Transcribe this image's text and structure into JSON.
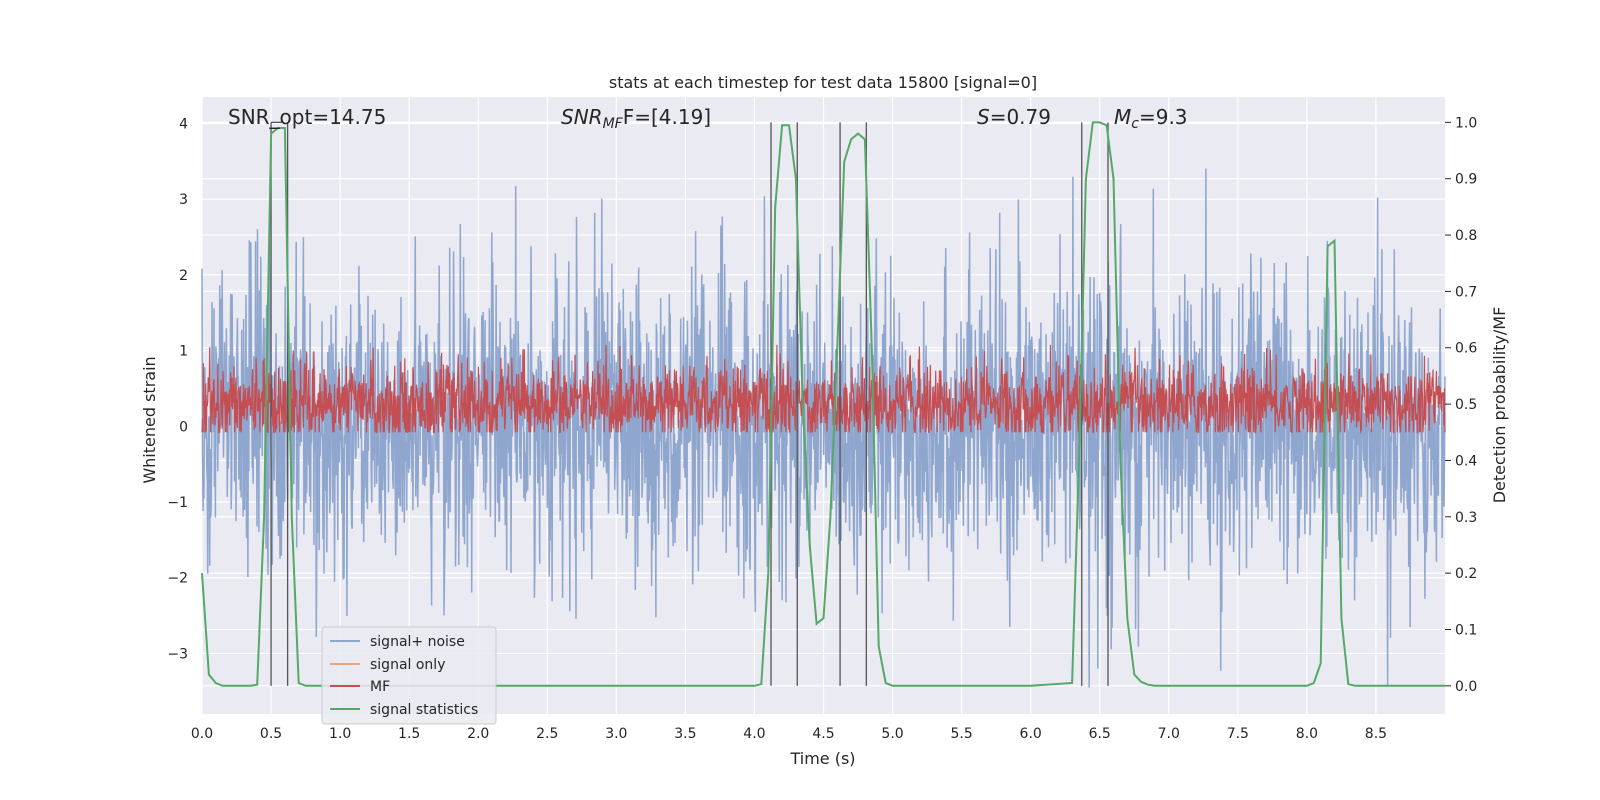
{
  "chart_data": {
    "type": "line",
    "title": "stats at each timestep for test data 15800 [signal=0]",
    "xlabel": "Time (s)",
    "ylabel": "Whitened strain",
    "ylabel_right": "Detection probability/MF",
    "xlim": [
      0.0,
      9.0
    ],
    "ylim": [
      -3.8,
      4.35
    ],
    "ylim_right": [
      -0.05,
      1.045
    ],
    "xticks": [
      "0.0",
      "0.5",
      "1.0",
      "1.5",
      "2.0",
      "2.5",
      "3.0",
      "3.5",
      "4.0",
      "4.5",
      "5.0",
      "5.5",
      "6.0",
      "6.5",
      "7.0",
      "7.5",
      "8.0",
      "8.5"
    ],
    "yticks": [
      "4",
      "3",
      "2",
      "1",
      "0",
      "−1",
      "−2",
      "−3"
    ],
    "yticks_right": [
      "1.0",
      "0.9",
      "0.8",
      "0.7",
      "0.6",
      "0.5",
      "0.4",
      "0.3",
      "0.2",
      "0.1",
      "0.0"
    ],
    "grid": true,
    "legend_position": "lower-left",
    "annotations": {
      "snr_opt": "SNR_opt=14.75",
      "snr_mf_main": "SNR",
      "snr_mf_sub": "MF",
      "snr_mf_value": "F=[4.19]",
      "s_main": "S",
      "s_value": "=0.79",
      "mc_main": "M",
      "mc_sub": "c",
      "mc_value": "=9.3"
    },
    "series": [
      {
        "name": "signal+ noise",
        "color": "#8fa6cf",
        "description": "noise-dominated whitened strain, roughly symmetric about 0, amplitude ~±2 with peaks to ~3.8 and troughs to ~-3.4"
      },
      {
        "name": "signal only",
        "color": "#eea184"
      },
      {
        "name": "MF",
        "color": "#c44e52",
        "description": "matched-filter output on right axis, fluctuating between ~0.45 and ~0.6"
      },
      {
        "name": "signal statistics",
        "color": "#55a868",
        "x": [
          0.0,
          0.05,
          0.1,
          0.15,
          0.2,
          0.25,
          0.3,
          0.35,
          0.4,
          0.45,
          0.5,
          0.55,
          0.6,
          0.65,
          0.7,
          0.75,
          0.8,
          0.85,
          0.9,
          0.95,
          1.0,
          1.5,
          2.0,
          2.5,
          3.0,
          3.5,
          4.0,
          4.05,
          4.1,
          4.15,
          4.2,
          4.25,
          4.3,
          4.35,
          4.4,
          4.45,
          4.5,
          4.55,
          4.6,
          4.65,
          4.7,
          4.75,
          4.8,
          4.85,
          4.9,
          4.95,
          5.0,
          5.05,
          5.1,
          5.5,
          6.0,
          6.3,
          6.35,
          6.4,
          6.45,
          6.5,
          6.55,
          6.6,
          6.65,
          6.7,
          6.75,
          6.8,
          6.85,
          6.9,
          6.95,
          7.0,
          7.5,
          8.0,
          8.05,
          8.1,
          8.15,
          8.2,
          8.25,
          8.3,
          8.35,
          8.4,
          8.5,
          9.0
        ],
        "y": [
          0.2,
          0.02,
          0.005,
          0.0,
          0.0,
          0.0,
          0.0,
          0.0,
          0.002,
          0.3,
          0.98,
          0.99,
          0.99,
          0.3,
          0.005,
          0.0,
          0.0,
          0.0,
          0.0,
          0.0,
          0.0,
          0.0,
          0.0,
          0.0,
          0.0,
          0.0,
          0.0,
          0.003,
          0.2,
          0.85,
          0.995,
          0.995,
          0.9,
          0.5,
          0.25,
          0.11,
          0.12,
          0.3,
          0.6,
          0.93,
          0.97,
          0.98,
          0.97,
          0.6,
          0.07,
          0.005,
          0.0,
          0.0,
          0.0,
          0.0,
          0.0,
          0.005,
          0.4,
          0.9,
          1.0,
          1.0,
          0.995,
          0.9,
          0.4,
          0.12,
          0.02,
          0.007,
          0.002,
          0.0,
          0.0,
          0.0,
          0.0,
          0.0,
          0.005,
          0.04,
          0.78,
          0.79,
          0.12,
          0.003,
          0.0,
          0.0,
          0.0,
          0.0
        ]
      }
    ],
    "detection_markers_x": [
      0.5,
      0.62,
      4.12,
      4.31,
      4.62,
      4.81,
      6.37,
      6.56
    ]
  }
}
